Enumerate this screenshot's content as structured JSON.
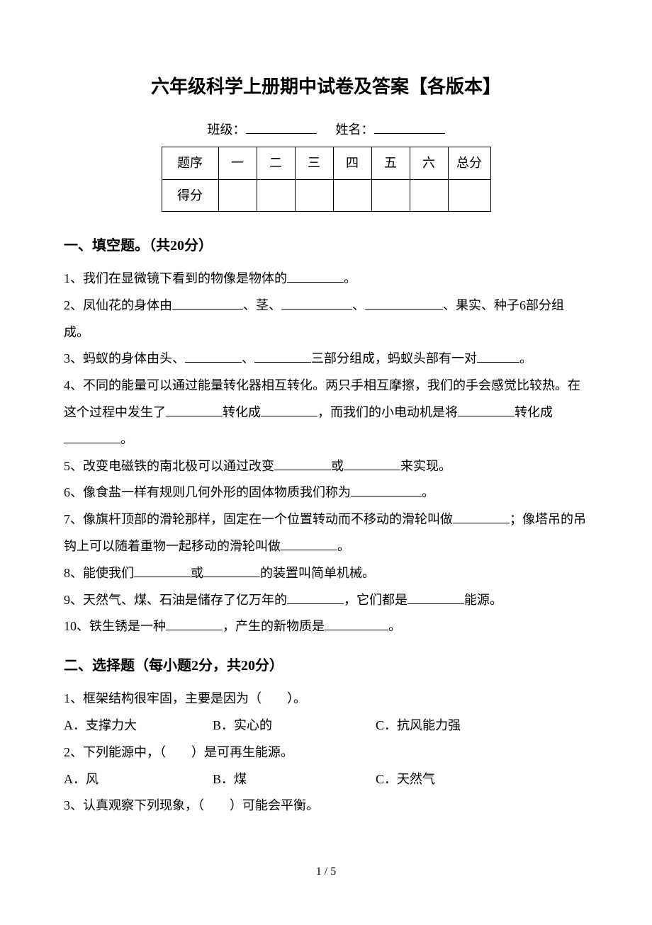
{
  "title": "六年级科学上册期中试卷及答案【各版本】",
  "info": {
    "class_label": "班级：",
    "name_label": "姓名："
  },
  "score_table": {
    "row1": [
      "题序",
      "一",
      "二",
      "三",
      "四",
      "五",
      "六",
      "总分"
    ],
    "row2_label": "得分"
  },
  "section1": {
    "header": "一、填空题。（共20分）",
    "q1_a": "1、我们在显微镜下看到的物像是物体的",
    "q1_b": "。",
    "q2_a": "2、凤仙花的身体由",
    "q2_b": "、茎、",
    "q2_c": "、",
    "q2_d": "、果实、种子6部分组成。",
    "q3_a": "3、蚂蚁的身体由头、",
    "q3_b": "、",
    "q3_c": "三部分组成，蚂蚁头部有一对",
    "q3_d": "。",
    "q4_a": "4、不同的能量可以通过能量转化器相互转化。两只手相互摩擦，我们的手会感觉比较热。在这个过程中发生了",
    "q4_b": "转化成",
    "q4_c": "，而我们的小电动机是将",
    "q4_d": "转化成",
    "q4_e": "。",
    "q5_a": "5、改变电磁铁的南北极可以通过改变",
    "q5_b": "或",
    "q5_c": "来实现。",
    "q6_a": "6、像食盐一样有规则几何外形的固体物质我们称为",
    "q6_b": "。",
    "q7_a": "7、像旗杆顶部的滑轮那样，固定在一个位置转动而不移动的滑轮叫做",
    "q7_b": "；像塔吊的吊钩上可以随着重物一起移动的滑轮叫做",
    "q7_c": "。",
    "q8_a": "8、能使我们",
    "q8_b": "或",
    "q8_c": "的装置叫简单机械。",
    "q9_a": "9、天然气、煤、石油是储存了亿万年的",
    "q9_b": "，它们都是",
    "q9_c": "能源。",
    "q10_a": "10、铁生锈是一种",
    "q10_b": "，产生的新物质是",
    "q10_c": "。"
  },
  "section2": {
    "header": "二、选择题（每小题2分，共20分）",
    "q1": "1、框架结构很牢固，主要是因为（　　）。",
    "q1_opts": {
      "a": "A．支撑力大",
      "b": "B．实心的",
      "c": "C．抗风能力强"
    },
    "q2": "2、下列能源中，（　　）是可再生能源。",
    "q2_opts": {
      "a": "A．风",
      "b": "B．煤",
      "c": "C．天然气"
    },
    "q3": "3、认真观察下列现象，（　　）可能会平衡。"
  },
  "page_number": "1 / 5"
}
